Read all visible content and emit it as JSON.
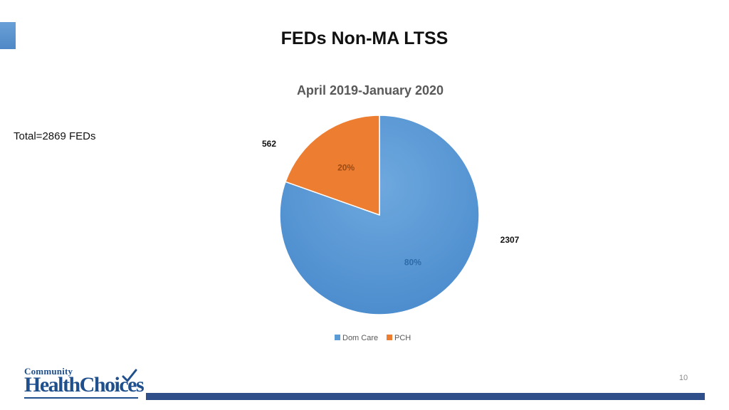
{
  "slide": {
    "title": "FEDs Non-MA LTSS",
    "total_note": "Total=2869 FEDs",
    "page_number": "10"
  },
  "logo": {
    "top_text": "Community",
    "bottom_text": "HealthChoices",
    "icon": "checkmark-icon",
    "color": "#1f4f8c"
  },
  "chart_data": {
    "type": "pie",
    "title": "April 2019-January 2020",
    "categories": [
      "Dom Care",
      "PCH"
    ],
    "values": [
      2307,
      562
    ],
    "percent_labels": [
      "80%",
      "20%"
    ],
    "colors": [
      "#5b9bd5",
      "#ed7d31"
    ],
    "legend": {
      "position": "bottom",
      "entries": [
        "Dom Care",
        "PCH"
      ]
    },
    "start_angle_deg": 0,
    "direction": "clockwise"
  }
}
